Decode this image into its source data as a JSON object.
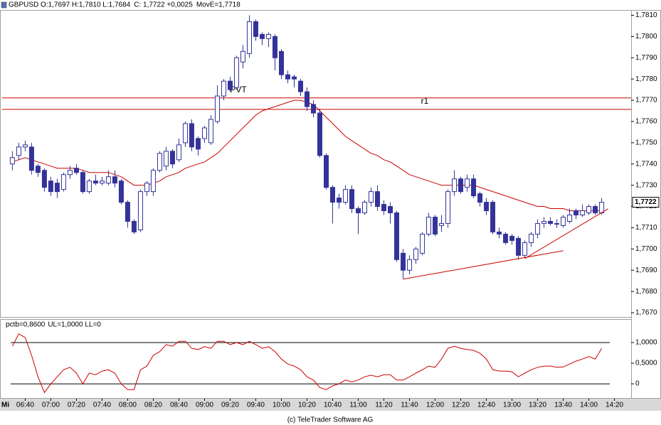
{
  "chart_data": [
    {
      "type": "candlestick",
      "header": [
        {
          "label": "GBPUSD O:1,7697 H:1,7810 L:1,7684",
          "color": "#000000"
        },
        {
          "label": "C: 1,7722 +0,0025",
          "color": "#cc0000"
        },
        {
          "label": "MovE=1,7718",
          "color": "#cc0000"
        }
      ],
      "x": [
        "06:30",
        "06:35",
        "06:40",
        "06:45",
        "06:50",
        "06:55",
        "07:00",
        "07:05",
        "07:10",
        "07:15",
        "07:20",
        "07:25",
        "07:30",
        "07:35",
        "07:40",
        "07:45",
        "07:50",
        "07:55",
        "08:00",
        "08:05",
        "08:10",
        "08:15",
        "08:20",
        "08:25",
        "08:30",
        "08:35",
        "08:40",
        "08:45",
        "08:50",
        "08:55",
        "09:00",
        "09:05",
        "09:10",
        "09:15",
        "09:20",
        "09:25",
        "09:30",
        "09:35",
        "09:40",
        "09:45",
        "09:50",
        "09:55",
        "10:00",
        "10:05",
        "10:10",
        "10:15",
        "10:20",
        "10:25",
        "10:30",
        "10:35",
        "10:40",
        "10:45",
        "10:50",
        "10:55",
        "11:00",
        "11:05",
        "11:10",
        "11:15",
        "11:20",
        "11:25",
        "11:30",
        "11:35",
        "11:40",
        "11:45",
        "11:50",
        "11:55",
        "12:00",
        "12:05",
        "12:10",
        "12:15",
        "12:20",
        "12:25",
        "12:30",
        "12:35",
        "12:40",
        "12:45",
        "12:50",
        "12:55",
        "13:00",
        "13:05",
        "13:10",
        "13:15",
        "13:20",
        "13:25",
        "13:30",
        "13:35",
        "13:40",
        "13:45",
        "13:50",
        "13:55",
        "14:00",
        "14:05",
        "14:10"
      ],
      "xlim": [
        "06:22",
        "14:33"
      ],
      "open": [
        1.774,
        1.7744,
        1.7748,
        1.7748,
        1.7739,
        1.7737,
        1.7732,
        1.7731,
        1.7728,
        1.7735,
        1.7738,
        1.7736,
        1.7727,
        1.7732,
        1.7731,
        1.7731,
        1.7734,
        1.7732,
        1.7722,
        1.7713,
        1.7709,
        1.7727,
        1.7727,
        1.7737,
        1.7739,
        1.7746,
        1.7742,
        1.775,
        1.7759,
        1.7752,
        1.7752,
        1.775,
        1.776,
        1.7772,
        1.7779,
        1.7776,
        1.7788,
        1.7792,
        1.7807,
        1.7801,
        1.7799,
        1.78,
        1.7793,
        1.7782,
        1.7781,
        1.7779,
        1.7774,
        1.7768,
        1.7764,
        1.7744,
        1.7729,
        1.7724,
        1.7722,
        1.7728,
        1.7719,
        1.7717,
        1.7722,
        1.7727,
        1.7721,
        1.772,
        1.7717,
        1.7698,
        1.769,
        1.7695,
        1.7698,
        1.7707,
        1.7715,
        1.7711,
        1.7712,
        1.7727,
        1.7733,
        1.7729,
        1.7733,
        1.7726,
        1.7722,
        1.7722,
        1.7708,
        1.7707,
        1.7706,
        1.7705,
        1.7697,
        1.7703,
        1.7707,
        1.7712,
        1.7713,
        1.7712,
        1.7711,
        1.7713,
        1.7718,
        1.7716,
        1.7717,
        1.772,
        1.7717
      ],
      "high": [
        1.7746,
        1.775,
        1.7751,
        1.775,
        1.774,
        1.7738,
        1.7734,
        1.7733,
        1.7736,
        1.7739,
        1.774,
        1.7737,
        1.7733,
        1.7735,
        1.7734,
        1.7737,
        1.7737,
        1.7733,
        1.7723,
        1.7714,
        1.7728,
        1.7732,
        1.7738,
        1.7746,
        1.7748,
        1.7747,
        1.7752,
        1.776,
        1.7761,
        1.7753,
        1.7758,
        1.7763,
        1.7777,
        1.778,
        1.7781,
        1.7791,
        1.7796,
        1.781,
        1.7808,
        1.7802,
        1.7802,
        1.7801,
        1.7794,
        1.7784,
        1.7782,
        1.778,
        1.7776,
        1.777,
        1.7766,
        1.7745,
        1.773,
        1.7726,
        1.773,
        1.773,
        1.772,
        1.7723,
        1.7729,
        1.773,
        1.7723,
        1.7722,
        1.7718,
        1.77,
        1.7697,
        1.7701,
        1.7708,
        1.7717,
        1.7716,
        1.7716,
        1.7728,
        1.7737,
        1.7734,
        1.7735,
        1.7735,
        1.7727,
        1.7724,
        1.7723,
        1.771,
        1.7708,
        1.7707,
        1.7706,
        1.7704,
        1.7708,
        1.7714,
        1.7715,
        1.7715,
        1.7714,
        1.7716,
        1.7719,
        1.7719,
        1.7721,
        1.7721,
        1.7721,
        1.7724
      ],
      "low": [
        1.7737,
        1.7742,
        1.7746,
        1.7735,
        1.7734,
        1.7727,
        1.7725,
        1.7724,
        1.7727,
        1.7733,
        1.7735,
        1.7726,
        1.7726,
        1.773,
        1.773,
        1.773,
        1.7729,
        1.7721,
        1.771,
        1.7707,
        1.7708,
        1.7725,
        1.7725,
        1.7736,
        1.7737,
        1.7738,
        1.7741,
        1.7748,
        1.7746,
        1.7744,
        1.775,
        1.7749,
        1.7759,
        1.777,
        1.7774,
        1.7775,
        1.7785,
        1.779,
        1.7798,
        1.7796,
        1.7795,
        1.7784,
        1.778,
        1.7778,
        1.7776,
        1.7772,
        1.7765,
        1.7762,
        1.7743,
        1.7728,
        1.7712,
        1.7719,
        1.7721,
        1.7717,
        1.7707,
        1.7716,
        1.772,
        1.7718,
        1.7716,
        1.7712,
        1.7694,
        1.7686,
        1.7688,
        1.7693,
        1.7697,
        1.7706,
        1.7706,
        1.7708,
        1.771,
        1.7725,
        1.7726,
        1.7727,
        1.7724,
        1.772,
        1.7716,
        1.7707,
        1.7705,
        1.7702,
        1.7702,
        1.7695,
        1.7696,
        1.7701,
        1.7705,
        1.771,
        1.7711,
        1.771,
        1.771,
        1.7712,
        1.7714,
        1.7715,
        1.7716,
        1.7716,
        1.7716
      ],
      "close": [
        1.7743,
        1.7748,
        1.7749,
        1.7737,
        1.7736,
        1.7729,
        1.7727,
        1.7727,
        1.7735,
        1.7737,
        1.7736,
        1.7727,
        1.7732,
        1.7731,
        1.7732,
        1.7734,
        1.7731,
        1.7722,
        1.7713,
        1.7708,
        1.7727,
        1.7731,
        1.7737,
        1.7745,
        1.7746,
        1.774,
        1.7749,
        1.7759,
        1.7748,
        1.7747,
        1.7757,
        1.7761,
        1.7772,
        1.7779,
        1.7775,
        1.779,
        1.7793,
        1.7807,
        1.78,
        1.7799,
        1.7801,
        1.779,
        1.7782,
        1.778,
        1.778,
        1.7774,
        1.7767,
        1.7764,
        1.7744,
        1.7729,
        1.7722,
        1.7722,
        1.7728,
        1.7719,
        1.7717,
        1.7722,
        1.7727,
        1.772,
        1.7718,
        1.7717,
        1.7695,
        1.769,
        1.7695,
        1.77,
        1.7707,
        1.7715,
        1.7707,
        1.7712,
        1.7727,
        1.7733,
        1.7727,
        1.7733,
        1.7725,
        1.7722,
        1.7718,
        1.7708,
        1.7707,
        1.7703,
        1.7704,
        1.7697,
        1.7703,
        1.7707,
        1.7712,
        1.7713,
        1.7712,
        1.7712,
        1.7715,
        1.7716,
        1.7716,
        1.7718,
        1.772,
        1.7717,
        1.7722
      ],
      "up_color": "#ffffff",
      "down_color": "#333399",
      "edge_color": "#333399",
      "ma": {
        "color": "#cc0000",
        "values": [
          1.7741,
          1.7742,
          1.7743,
          1.7742,
          1.7741,
          1.774,
          1.7739,
          1.7738,
          1.7738,
          1.7738,
          1.7738,
          1.7737,
          1.7736,
          1.7736,
          1.7736,
          1.7736,
          1.7735,
          1.7734,
          1.7732,
          1.773,
          1.773,
          1.773,
          1.7731,
          1.7732,
          1.7734,
          1.7735,
          1.7736,
          1.7738,
          1.7739,
          1.774,
          1.7741,
          1.7743,
          1.7745,
          1.7748,
          1.7751,
          1.7754,
          1.7757,
          1.776,
          1.7763,
          1.7765,
          1.7766,
          1.7767,
          1.7768,
          1.7769,
          1.777,
          1.777,
          1.7769,
          1.7768,
          1.7765,
          1.7762,
          1.7759,
          1.7756,
          1.7753,
          1.7751,
          1.7749,
          1.7747,
          1.7745,
          1.7744,
          1.7742,
          1.7741,
          1.7739,
          1.7737,
          1.7735,
          1.7734,
          1.7733,
          1.7732,
          1.7731,
          1.773,
          1.773,
          1.773,
          1.773,
          1.773,
          1.773,
          1.7729,
          1.7728,
          1.7727,
          1.7726,
          1.7725,
          1.7724,
          1.7723,
          1.7722,
          1.7721,
          1.772,
          1.772,
          1.7719,
          1.7719,
          1.7719,
          1.7718,
          1.7718,
          1.7718,
          1.7718,
          1.7718,
          1.7718
        ]
      },
      "levels": [
        {
          "label": "r1",
          "value": 1.77657
        },
        {
          "label": "PVT",
          "value": 1.77711
        }
      ],
      "level_color": "#cc0000",
      "trendlines": [
        {
          "x": [
            "11:35",
            "13:40"
          ],
          "y": [
            1.76858,
            1.76992
          ]
        },
        {
          "x": [
            "13:10",
            "14:15"
          ],
          "y": [
            1.76955,
            1.77189
          ]
        }
      ],
      "last_label": {
        "value": 1.7722,
        "label": "1,7722"
      },
      "ylim": [
        1.7668,
        1.78125
      ],
      "yticks": [
        {
          "value": 1.767,
          "label": "1,7670"
        },
        {
          "value": 1.768,
          "label": "1,7680"
        },
        {
          "value": 1.769,
          "label": "1,7690"
        },
        {
          "value": 1.77,
          "label": "1,7700"
        },
        {
          "value": 1.771,
          "label": "1,7710"
        },
        {
          "value": 1.772,
          "label": "1,7720"
        },
        {
          "value": 1.773,
          "label": "1,7730"
        },
        {
          "value": 1.774,
          "label": "1,7740"
        },
        {
          "value": 1.775,
          "label": "1,7750"
        },
        {
          "value": 1.776,
          "label": "1,7760"
        },
        {
          "value": 1.777,
          "label": "1,7770"
        },
        {
          "value": 1.778,
          "label": "1,7780"
        },
        {
          "value": 1.779,
          "label": "1,7790"
        },
        {
          "value": 1.78,
          "label": "1,7800"
        },
        {
          "value": 1.781,
          "label": "1,7810"
        }
      ]
    },
    {
      "type": "line",
      "legend": [
        {
          "label": "pctb=0,8600",
          "color": "#cc0000"
        },
        {
          "label": "UL=1,0000 LL=0",
          "color": "#000000"
        }
      ],
      "x": [
        "06:30",
        "06:35",
        "06:40",
        "06:45",
        "06:50",
        "06:55",
        "07:00",
        "07:05",
        "07:10",
        "07:15",
        "07:20",
        "07:25",
        "07:30",
        "07:35",
        "07:40",
        "07:45",
        "07:50",
        "07:55",
        "08:00",
        "08:05",
        "08:10",
        "08:15",
        "08:20",
        "08:25",
        "08:30",
        "08:35",
        "08:40",
        "08:45",
        "08:50",
        "08:55",
        "09:00",
        "09:05",
        "09:10",
        "09:15",
        "09:20",
        "09:25",
        "09:30",
        "09:35",
        "09:40",
        "09:45",
        "09:50",
        "09:55",
        "10:00",
        "10:05",
        "10:10",
        "10:15",
        "10:20",
        "10:25",
        "10:30",
        "10:35",
        "10:40",
        "10:45",
        "10:50",
        "10:55",
        "11:00",
        "11:05",
        "11:10",
        "11:15",
        "11:20",
        "11:25",
        "11:30",
        "11:35",
        "11:40",
        "11:45",
        "11:50",
        "11:55",
        "12:00",
        "12:05",
        "12:10",
        "12:15",
        "12:20",
        "12:25",
        "12:30",
        "12:35",
        "12:40",
        "12:45",
        "12:50",
        "12:55",
        "13:00",
        "13:05",
        "13:10",
        "13:15",
        "13:20",
        "13:25",
        "13:30",
        "13:35",
        "13:40",
        "13:45",
        "13:50",
        "13:55",
        "14:00",
        "14:05",
        "14:10"
      ],
      "xlim": [
        "06:22",
        "14:33"
      ],
      "xticks": [
        "06:40",
        "07:00",
        "07:20",
        "07:40",
        "08:00",
        "08:20",
        "08:40",
        "09:00",
        "09:20",
        "09:40",
        "10:00",
        "10:20",
        "10:40",
        "11:00",
        "11:20",
        "11:40",
        "12:00",
        "12:20",
        "12:40",
        "13:00",
        "13:20",
        "13:40",
        "14:00",
        "14:20"
      ],
      "x_day": "Mi",
      "color": "#cc0000",
      "values": [
        0.91,
        1.21,
        1.12,
        0.69,
        0.17,
        -0.21,
        0,
        0.17,
        0.34,
        0.4,
        0.26,
        0,
        0.26,
        0.22,
        0.31,
        0.34,
        0.26,
        0,
        -0.14,
        -0.14,
        0.34,
        0.43,
        0.69,
        0.78,
        0.95,
        0.91,
        1.03,
        1.03,
        0.86,
        0.83,
        0.9,
        0.86,
        1.03,
        1.03,
        0.95,
        1.0,
        0.95,
        1.03,
        0.95,
        0.86,
        0.9,
        0.78,
        0.6,
        0.48,
        0.43,
        0.34,
        0.17,
        0.09,
        -0.09,
        -0.14,
        -0.05,
        0,
        0.09,
        0.05,
        0.09,
        0.17,
        0.21,
        0.17,
        0.22,
        0.22,
        0.09,
        0.09,
        0.17,
        0.26,
        0.34,
        0.43,
        0.4,
        0.6,
        0.86,
        0.91,
        0.86,
        0.83,
        0.81,
        0.74,
        0.6,
        0.34,
        0.31,
        0.31,
        0.29,
        0.17,
        0.26,
        0.34,
        0.4,
        0.43,
        0.43,
        0.4,
        0.41,
        0.48,
        0.55,
        0.6,
        0.66,
        0.6,
        0.86
      ],
      "hlines": [
        1,
        0
      ],
      "hline_color": "#000000",
      "ylim": [
        -0.36,
        1.55
      ],
      "yticks": [
        {
          "value": 1,
          "label": "1,0000"
        },
        {
          "value": 0.5,
          "label": "0,5000"
        },
        0
      ]
    }
  ],
  "footer": "(c) TeleTrader Software AG"
}
